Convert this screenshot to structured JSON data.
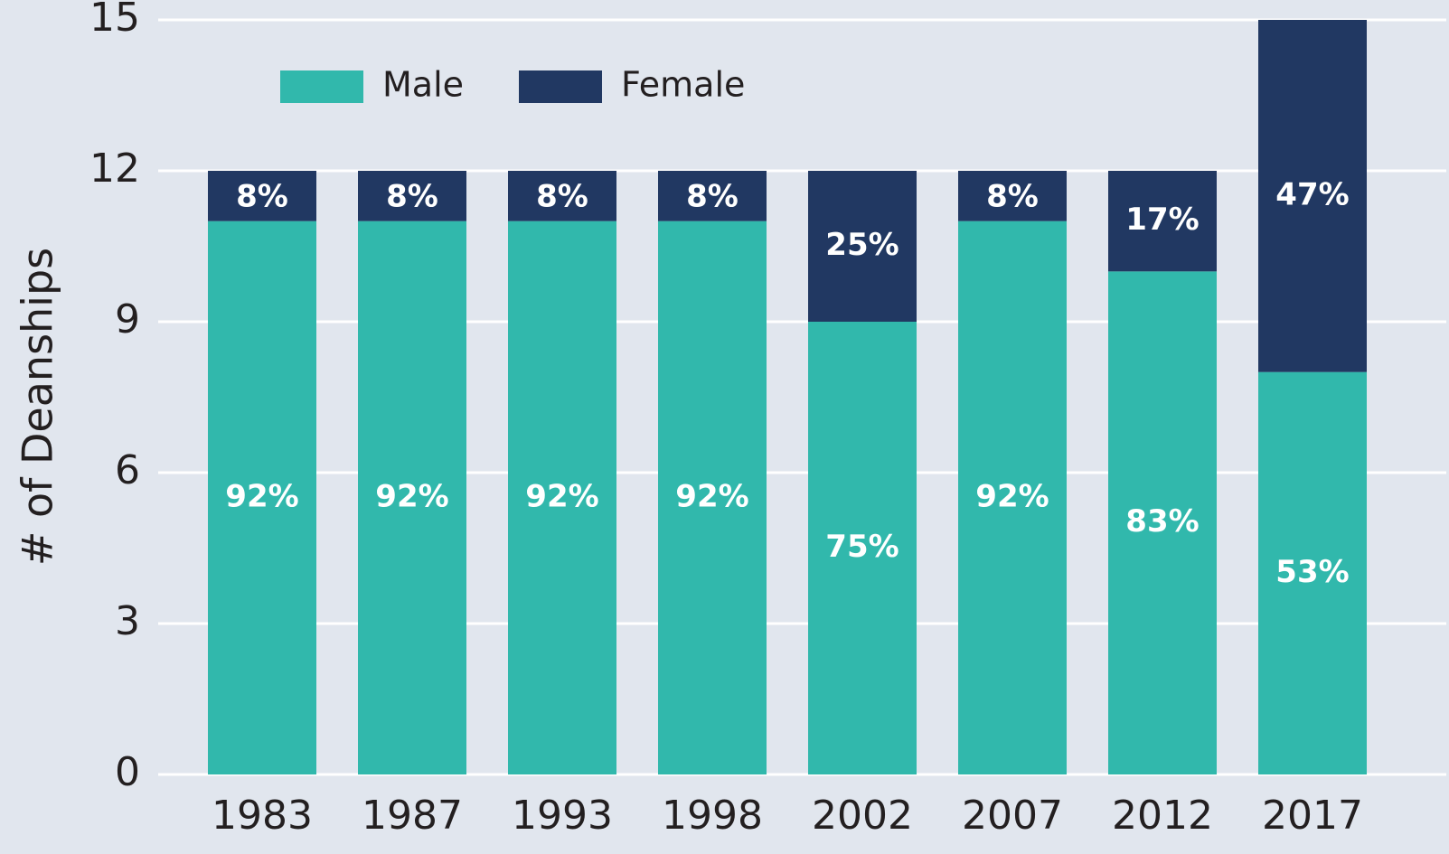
{
  "chart_data": {
    "type": "stacked_bar",
    "ylabel": "# of Deanships",
    "categories": [
      "1983",
      "1987",
      "1993",
      "1998",
      "2002",
      "2007",
      "2012",
      "2017"
    ],
    "series": [
      {
        "name": "Male",
        "color": "#31b8ac",
        "values": [
          11,
          11,
          11,
          11,
          9,
          11,
          10,
          8
        ],
        "value_labels": [
          "92%",
          "92%",
          "92%",
          "92%",
          "75%",
          "92%",
          "83%",
          "53%"
        ]
      },
      {
        "name": "Female",
        "color": "#213862",
        "values": [
          1,
          1,
          1,
          1,
          3,
          1,
          2,
          7
        ],
        "value_labels": [
          "8%",
          "8%",
          "8%",
          "8%",
          "25%",
          "8%",
          "17%",
          "47%"
        ]
      }
    ],
    "ylim": [
      0,
      15
    ],
    "yticks": [
      0,
      3,
      6,
      9,
      12,
      15
    ],
    "grid": true,
    "legend": "top-left"
  }
}
